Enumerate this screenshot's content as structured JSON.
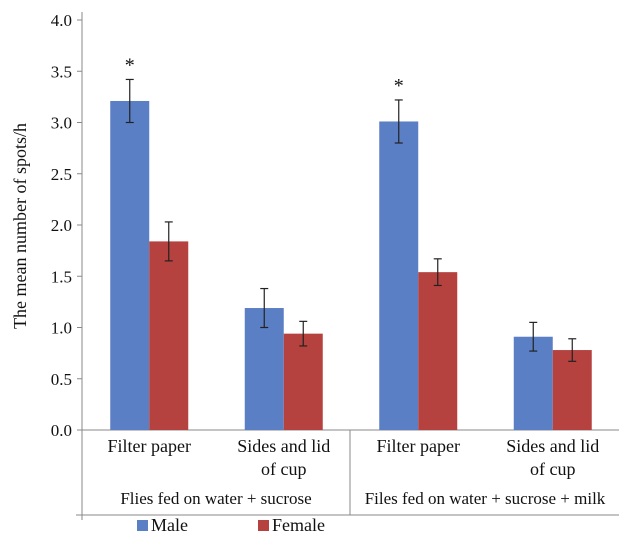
{
  "chart_data": {
    "type": "bar",
    "ylabel": "The mean number of spots/h",
    "ylim": [
      0,
      4.0
    ],
    "yticks": [
      "0.0",
      "0.5",
      "1.0",
      "1.5",
      "2.0",
      "2.5",
      "3.0",
      "3.5",
      "4.0"
    ],
    "grid": false,
    "legend_position": "bottom",
    "groups": [
      "Flies fed on water + sucrose",
      "Files fed on water + sucrose + milk"
    ],
    "categories": [
      {
        "lines": [
          "Filter paper"
        ],
        "group": 0
      },
      {
        "lines": [
          "Sides and lid",
          "of cup"
        ],
        "group": 0
      },
      {
        "lines": [
          "Filter paper"
        ],
        "group": 1
      },
      {
        "lines": [
          "Sides and lid",
          "of cup"
        ],
        "group": 1
      }
    ],
    "series": [
      {
        "name": "Male",
        "color": "#5b7fc4",
        "values": [
          3.21,
          1.19,
          3.01,
          0.91
        ],
        "errors": [
          0.21,
          0.19,
          0.21,
          0.14
        ]
      },
      {
        "name": "Female",
        "color": "#b5423f",
        "values": [
          1.84,
          0.94,
          1.54,
          0.78
        ],
        "errors": [
          0.19,
          0.12,
          0.13,
          0.11
        ]
      }
    ],
    "annotations": [
      {
        "text": "*",
        "category": 0,
        "series": 0
      },
      {
        "text": "*",
        "category": 2,
        "series": 0
      }
    ]
  }
}
